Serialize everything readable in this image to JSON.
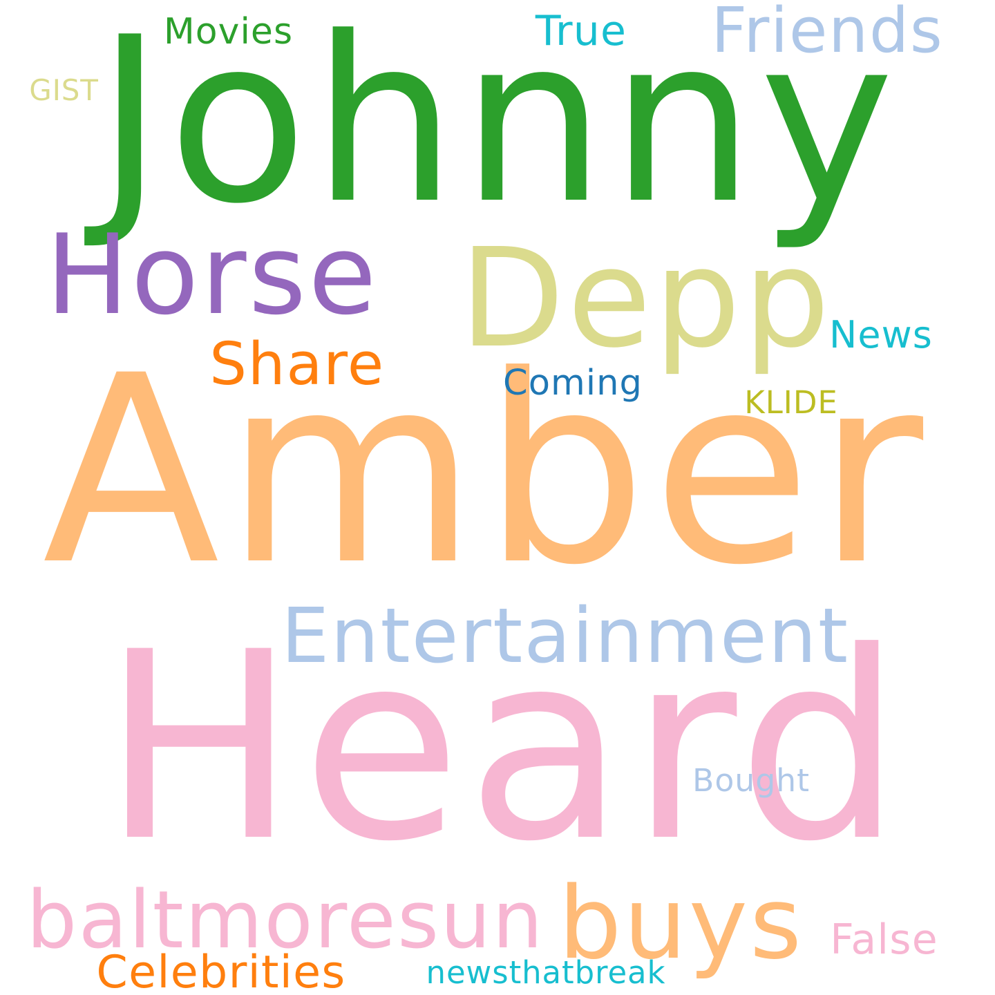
{
  "words": [
    {
      "text": "Johnny",
      "color": "#2ca02c"
    },
    {
      "text": "Amber",
      "color": "#ffbb78"
    },
    {
      "text": "Heard",
      "color": "#f7b6d2"
    },
    {
      "text": "Horse",
      "color": "#9467bd"
    },
    {
      "text": "Depp",
      "color": "#dbdb8d"
    },
    {
      "text": "Entertainment",
      "color": "#aec7e8"
    },
    {
      "text": "Friends",
      "color": "#aec7e8"
    },
    {
      "text": "Share",
      "color": "#ff7f0e"
    },
    {
      "text": "buys",
      "color": "#ffbb78"
    },
    {
      "text": "baltmoresun",
      "color": "#f7b6d2"
    },
    {
      "text": "Movies",
      "color": "#2ca02c"
    },
    {
      "text": "True",
      "color": "#17becf"
    },
    {
      "text": "News",
      "color": "#17becf"
    },
    {
      "text": "Coming",
      "color": "#1f77b4"
    },
    {
      "text": "KLIDE",
      "color": "#bcbd22"
    },
    {
      "text": "GIST",
      "color": "#dbdb8d"
    },
    {
      "text": "Bought",
      "color": "#aec7e8"
    },
    {
      "text": "False",
      "color": "#f7b6d2"
    },
    {
      "text": "Celebrities",
      "color": "#ff7f0e"
    },
    {
      "text": "newsthatbreak",
      "color": "#17becf"
    }
  ]
}
